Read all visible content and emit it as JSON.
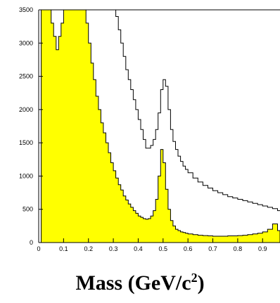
{
  "chart_data": {
    "type": "area",
    "xlabel": {
      "before": "Mass (GeV/c",
      "sup": "2",
      "after": ")"
    },
    "xlim": [
      0,
      0.97
    ],
    "ylim": [
      0,
      3500
    ],
    "xticks": [
      "0",
      "0.1",
      "0.2",
      "0.3",
      "0.4",
      "0.5",
      "0.6",
      "0.7",
      "0.8",
      "0.9"
    ],
    "yticks": [
      "0",
      "500",
      "1000",
      "1500",
      "2000",
      "2500",
      "3000",
      "3500"
    ],
    "colors": {
      "filled": "#ffff00",
      "outline": "#000000"
    },
    "series": [
      {
        "style": "outline",
        "x": [
          0.0,
          0.01,
          0.02,
          0.03,
          0.04,
          0.05,
          0.06,
          0.07,
          0.08,
          0.09,
          0.1,
          0.11,
          0.12,
          0.13,
          0.14,
          0.15,
          0.16,
          0.17,
          0.18,
          0.19,
          0.2,
          0.21,
          0.22,
          0.23,
          0.24,
          0.25,
          0.26,
          0.27,
          0.28,
          0.29,
          0.3,
          0.31,
          0.32,
          0.33,
          0.34,
          0.35,
          0.36,
          0.37,
          0.38,
          0.39,
          0.4,
          0.41,
          0.42,
          0.43,
          0.44,
          0.45,
          0.46,
          0.47,
          0.48,
          0.49,
          0.5,
          0.51,
          0.52,
          0.53,
          0.54,
          0.55,
          0.56,
          0.57,
          0.58,
          0.59,
          0.6,
          0.62,
          0.64,
          0.66,
          0.68,
          0.7,
          0.72,
          0.74,
          0.76,
          0.78,
          0.8,
          0.82,
          0.84,
          0.86,
          0.88,
          0.9,
          0.92,
          0.94,
          0.96,
          0.97
        ],
        "y": [
          3500,
          3500,
          3500,
          3500,
          3500,
          3500,
          3500,
          3500,
          3500,
          3500,
          3500,
          3500,
          3500,
          3500,
          3500,
          3500,
          3500,
          3500,
          3500,
          3500,
          3500,
          3500,
          3500,
          3500,
          3500,
          3500,
          3500,
          3500,
          3500,
          3500,
          3500,
          3400,
          3200,
          3000,
          2800,
          2600,
          2450,
          2300,
          2150,
          2000,
          1850,
          1700,
          1550,
          1420,
          1420,
          1460,
          1550,
          1700,
          1950,
          2300,
          2450,
          2350,
          2000,
          1700,
          1520,
          1400,
          1300,
          1220,
          1150,
          1100,
          1050,
          970,
          910,
          860,
          820,
          780,
          750,
          720,
          690,
          670,
          650,
          630,
          610,
          590,
          570,
          550,
          530,
          510,
          480,
          480
        ]
      },
      {
        "style": "filled",
        "x": [
          0.0,
          0.01,
          0.02,
          0.03,
          0.04,
          0.05,
          0.06,
          0.07,
          0.08,
          0.09,
          0.1,
          0.11,
          0.12,
          0.13,
          0.14,
          0.15,
          0.16,
          0.17,
          0.18,
          0.19,
          0.2,
          0.21,
          0.22,
          0.23,
          0.24,
          0.25,
          0.26,
          0.27,
          0.28,
          0.29,
          0.3,
          0.31,
          0.32,
          0.33,
          0.34,
          0.35,
          0.36,
          0.37,
          0.38,
          0.39,
          0.4,
          0.41,
          0.42,
          0.43,
          0.44,
          0.45,
          0.46,
          0.47,
          0.48,
          0.49,
          0.5,
          0.51,
          0.52,
          0.53,
          0.54,
          0.55,
          0.56,
          0.57,
          0.58,
          0.59,
          0.6,
          0.62,
          0.64,
          0.66,
          0.68,
          0.7,
          0.72,
          0.74,
          0.76,
          0.78,
          0.8,
          0.82,
          0.84,
          0.86,
          0.88,
          0.9,
          0.92,
          0.94,
          0.96,
          0.97
        ],
        "y": [
          0,
          3500,
          3500,
          3500,
          3500,
          3300,
          3100,
          2900,
          3100,
          3300,
          3500,
          3500,
          3500,
          3500,
          3500,
          3500,
          3500,
          3500,
          3500,
          3300,
          3000,
          2700,
          2450,
          2200,
          2000,
          1800,
          1650,
          1500,
          1350,
          1200,
          1080,
          970,
          870,
          790,
          700,
          640,
          580,
          530,
          480,
          440,
          400,
          380,
          360,
          350,
          360,
          400,
          480,
          650,
          1000,
          1400,
          1200,
          800,
          500,
          330,
          250,
          200,
          180,
          160,
          150,
          140,
          130,
          120,
          110,
          105,
          100,
          95,
          95,
          95,
          100,
          100,
          105,
          110,
          120,
          130,
          140,
          160,
          200,
          280,
          180,
          140
        ]
      }
    ]
  }
}
